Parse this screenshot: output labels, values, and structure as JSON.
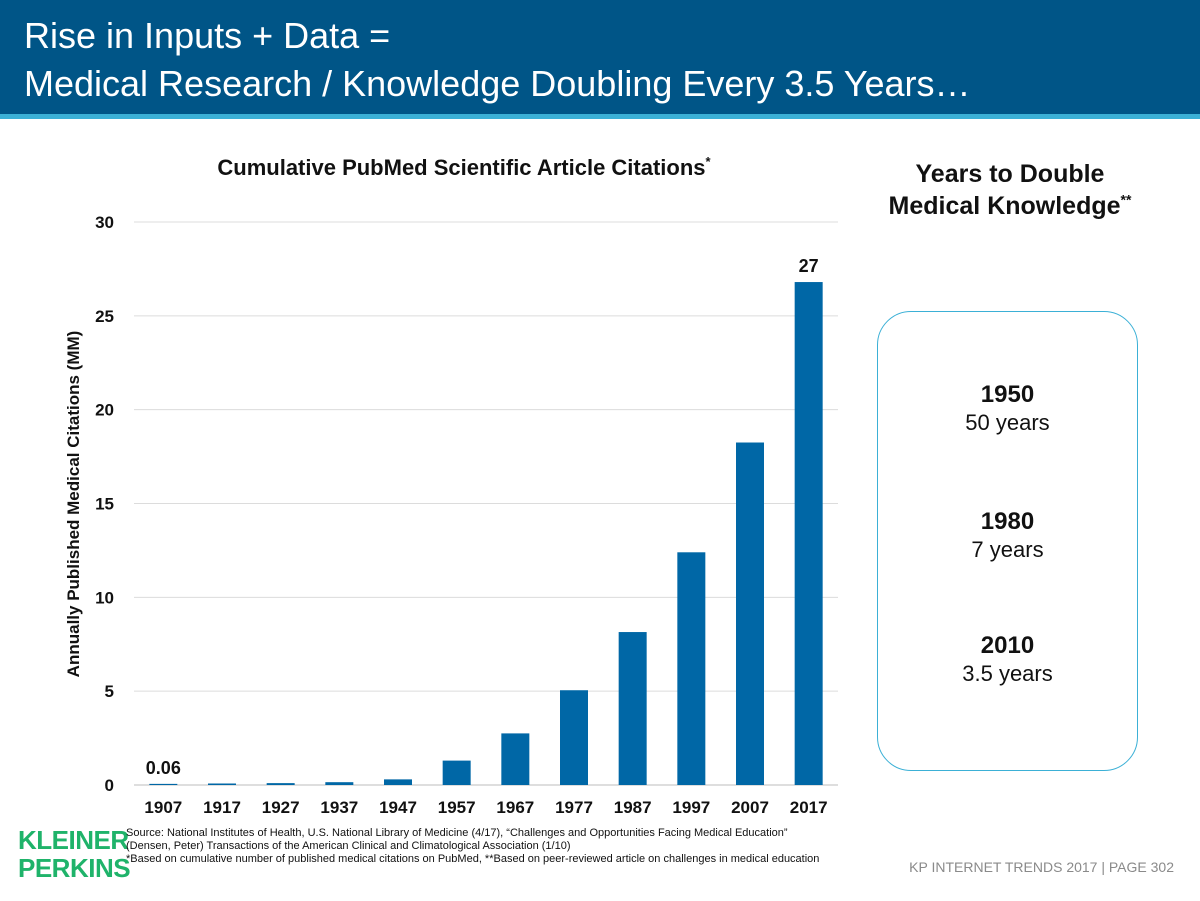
{
  "header": {
    "title_line1": "Rise in Inputs + Data =",
    "title_line2": "Medical Research / Knowledge Doubling Every 3.5 Years…"
  },
  "colors": {
    "header_bg": "#005587",
    "accent": "#3bb0d6",
    "bar": "#0067a6",
    "logo": "#1fb36a"
  },
  "chart_data": {
    "type": "bar",
    "title": "Cumulative PubMed Scientific Article Citations",
    "title_mark": "*",
    "xlabel": "",
    "ylabel": "Annually Published Medical Citations (MM)",
    "ylim": [
      0,
      30
    ],
    "yticks": [
      0,
      5,
      10,
      15,
      20,
      25,
      30
    ],
    "grid": true,
    "categories": [
      "1907",
      "1917",
      "1927",
      "1937",
      "1947",
      "1957",
      "1967",
      "1977",
      "1987",
      "1997",
      "2007",
      "2017"
    ],
    "values": [
      0.06,
      0.08,
      0.1,
      0.15,
      0.3,
      1.3,
      2.75,
      5.05,
      8.15,
      12.4,
      18.25,
      26.8
    ],
    "data_labels": [
      {
        "index": 0,
        "text": "0.06"
      },
      {
        "index": 11,
        "text": "27"
      }
    ]
  },
  "panel": {
    "title": "Years to Double Medical Knowledge",
    "title_mark": "**",
    "entries": [
      {
        "year": "1950",
        "duration": "50 years"
      },
      {
        "year": "1980",
        "duration": "7 years"
      },
      {
        "year": "2010",
        "duration": "3.5 years"
      }
    ]
  },
  "logo": {
    "line1": "KLEINER",
    "line2": "PERKINS"
  },
  "source": {
    "line1": "Source: National Institutes of Health, U.S. National Library of Medicine (4/17), “Challenges and Opportunities Facing Medical Education”",
    "line2": "(Densen, Peter) Transactions of the American Clinical and Climatological Association (1/10)",
    "line3": "*Based on cumulative number of published medical citations on PubMed, **Based on peer-reviewed article on challenges in medical education"
  },
  "footer": {
    "text": "KP INTERNET TRENDS 2017   |   PAGE 302"
  }
}
